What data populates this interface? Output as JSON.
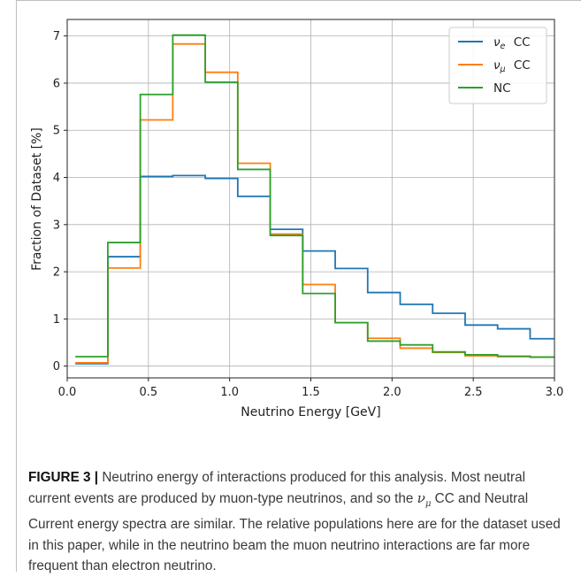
{
  "chart_data": {
    "type": "line",
    "drawstyle": "steps",
    "xlabel": "Neutrino Energy [GeV]",
    "ylabel": "Fraction of Dataset [%]",
    "xlim": [
      0.0,
      3.0
    ],
    "ylim": [
      -0.25,
      7.35
    ],
    "xticks": [
      "0.0",
      "0.5",
      "1.0",
      "1.5",
      "2.0",
      "2.5",
      "3.0"
    ],
    "yticks": [
      "0",
      "1",
      "2",
      "3",
      "4",
      "5",
      "6",
      "7"
    ],
    "grid": true,
    "legend_position": "top-right",
    "bin_edges": [
      0.05,
      0.25,
      0.45,
      0.65,
      0.85,
      1.05,
      1.25,
      1.45,
      1.65,
      1.85,
      2.05,
      2.25,
      2.45,
      2.65,
      2.85,
      3.0
    ],
    "series": [
      {
        "name": "νe  CC",
        "legend_base": "ν",
        "legend_sub": "e",
        "legend_suffix": " CC",
        "color": "#1f77b4",
        "values": [
          0.05,
          2.32,
          4.02,
          4.04,
          3.98,
          3.6,
          2.9,
          2.44,
          2.07,
          1.56,
          1.31,
          1.12,
          0.87,
          0.79,
          0.58
        ]
      },
      {
        "name": "νμ  CC",
        "legend_base": "ν",
        "legend_sub": "μ",
        "legend_suffix": " CC",
        "color": "#ff7f0e",
        "values": [
          0.07,
          2.08,
          5.22,
          6.83,
          6.23,
          4.3,
          2.8,
          1.73,
          0.92,
          0.59,
          0.38,
          0.29,
          0.22,
          0.2,
          0.19
        ]
      },
      {
        "name": "NC",
        "legend_base": "NC",
        "legend_sub": "",
        "legend_suffix": "",
        "color": "#2ca02c",
        "values": [
          0.2,
          2.62,
          5.76,
          7.02,
          6.02,
          4.17,
          2.77,
          1.54,
          0.92,
          0.53,
          0.45,
          0.3,
          0.24,
          0.21,
          0.19
        ]
      }
    ]
  },
  "caption": {
    "label": "FIGURE 3 |",
    "text_1": " Neutrino energy of interactions produced for this analysis. Most neutral current events are produced by muon-type neutrinos, and so the ",
    "symbol_base": "ν",
    "symbol_sub": "μ",
    "text_2": " CC and Neutral Current energy spectra are similar. The relative populations here are for the dataset used in this paper, while in the neutrino beam the muon neutrino interactions are far more frequent than electron neutrino."
  }
}
